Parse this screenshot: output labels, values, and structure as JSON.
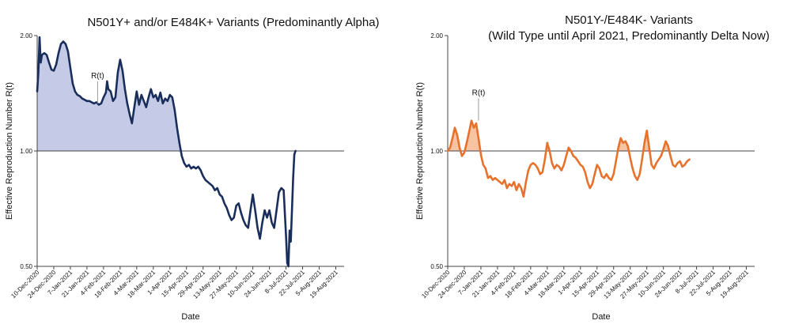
{
  "chart_data": [
    {
      "type": "area",
      "title": "N501Y+ and/or E484K+ Variants (Predominantly Alpha)",
      "subtitle": "",
      "xlabel": "Date",
      "ylabel": "Effective Reproduction Number R(t)",
      "y_scale": "log",
      "ylim": [
        0.5,
        2.0
      ],
      "y_ticks": [
        "0.50",
        "1.00",
        "2.00"
      ],
      "x_tick_labels": [
        "10-Dec-2020",
        "24-Dec-2020",
        "7-Jan-2021",
        "21-Jan-2021",
        "4-Feb-2021",
        "18-Feb-2021",
        "4-Mar-2021",
        "18-Mar-2021",
        "1-Apr-2021",
        "15-Apr-2021",
        "29-Apr-2021",
        "13-May-2021",
        "27-May-2021",
        "10-Jun-2021",
        "24-Jun-2021",
        "8-Jul-2021",
        "22-Jul-2021",
        "5-Aug-2021",
        "19-Aug-2021"
      ],
      "x_start": "2020-12-10",
      "x_end": "2021-08-26",
      "reference_line": 1.0,
      "annotation": {
        "text": "R(t)",
        "date": "2021-01-30",
        "value": 1.33
      },
      "line_color": "#1a2e5c",
      "fill_color": "#c5cbe6",
      "series": [
        {
          "name": "R(t)",
          "points": [
            [
              "2020-12-10",
              1.43
            ],
            [
              "2020-12-11",
              1.6
            ],
            [
              "2020-12-12",
              1.98
            ],
            [
              "2020-12-13",
              1.7
            ],
            [
              "2020-12-14",
              1.78
            ],
            [
              "2020-12-16",
              1.8
            ],
            [
              "2020-12-18",
              1.78
            ],
            [
              "2020-12-20",
              1.7
            ],
            [
              "2020-12-22",
              1.63
            ],
            [
              "2020-12-24",
              1.62
            ],
            [
              "2020-12-26",
              1.68
            ],
            [
              "2020-12-28",
              1.8
            ],
            [
              "2020-12-30",
              1.9
            ],
            [
              "2021-01-01",
              1.93
            ],
            [
              "2021-01-03",
              1.9
            ],
            [
              "2021-01-05",
              1.82
            ],
            [
              "2021-01-07",
              1.65
            ],
            [
              "2021-01-09",
              1.5
            ],
            [
              "2021-01-11",
              1.43
            ],
            [
              "2021-01-13",
              1.4
            ],
            [
              "2021-01-15",
              1.39
            ],
            [
              "2021-01-17",
              1.37
            ],
            [
              "2021-01-19",
              1.36
            ],
            [
              "2021-01-21",
              1.35
            ],
            [
              "2021-01-23",
              1.35
            ],
            [
              "2021-01-25",
              1.34
            ],
            [
              "2021-01-27",
              1.33
            ],
            [
              "2021-01-29",
              1.34
            ],
            [
              "2021-01-31",
              1.32
            ],
            [
              "2021-02-02",
              1.33
            ],
            [
              "2021-02-04",
              1.38
            ],
            [
              "2021-02-06",
              1.42
            ],
            [
              "2021-02-07",
              1.52
            ],
            [
              "2021-02-08",
              1.45
            ],
            [
              "2021-02-10",
              1.43
            ],
            [
              "2021-02-12",
              1.35
            ],
            [
              "2021-02-14",
              1.38
            ],
            [
              "2021-02-16",
              1.6
            ],
            [
              "2021-02-18",
              1.73
            ],
            [
              "2021-02-20",
              1.62
            ],
            [
              "2021-02-22",
              1.45
            ],
            [
              "2021-02-24",
              1.33
            ],
            [
              "2021-02-26",
              1.25
            ],
            [
              "2021-02-28",
              1.18
            ],
            [
              "2021-03-02",
              1.3
            ],
            [
              "2021-03-04",
              1.43
            ],
            [
              "2021-03-06",
              1.32
            ],
            [
              "2021-03-08",
              1.4
            ],
            [
              "2021-03-10",
              1.35
            ],
            [
              "2021-03-12",
              1.3
            ],
            [
              "2021-03-14",
              1.38
            ],
            [
              "2021-03-16",
              1.45
            ],
            [
              "2021-03-18",
              1.38
            ],
            [
              "2021-03-20",
              1.4
            ],
            [
              "2021-03-22",
              1.35
            ],
            [
              "2021-03-24",
              1.42
            ],
            [
              "2021-03-26",
              1.33
            ],
            [
              "2021-03-28",
              1.37
            ],
            [
              "2021-03-30",
              1.35
            ],
            [
              "2021-04-01",
              1.4
            ],
            [
              "2021-04-03",
              1.38
            ],
            [
              "2021-04-05",
              1.28
            ],
            [
              "2021-04-07",
              1.15
            ],
            [
              "2021-04-09",
              1.05
            ],
            [
              "2021-04-11",
              0.97
            ],
            [
              "2021-04-13",
              0.93
            ],
            [
              "2021-04-15",
              0.91
            ],
            [
              "2021-04-17",
              0.92
            ],
            [
              "2021-04-19",
              0.9
            ],
            [
              "2021-04-21",
              0.91
            ],
            [
              "2021-04-23",
              0.9
            ],
            [
              "2021-04-25",
              0.91
            ],
            [
              "2021-04-27",
              0.89
            ],
            [
              "2021-04-29",
              0.86
            ],
            [
              "2021-05-01",
              0.84
            ],
            [
              "2021-05-03",
              0.83
            ],
            [
              "2021-05-05",
              0.82
            ],
            [
              "2021-05-07",
              0.81
            ],
            [
              "2021-05-09",
              0.79
            ],
            [
              "2021-05-11",
              0.8
            ],
            [
              "2021-05-13",
              0.77
            ],
            [
              "2021-05-15",
              0.76
            ],
            [
              "2021-05-17",
              0.73
            ],
            [
              "2021-05-19",
              0.71
            ],
            [
              "2021-05-21",
              0.68
            ],
            [
              "2021-05-23",
              0.66
            ],
            [
              "2021-05-25",
              0.67
            ],
            [
              "2021-05-27",
              0.72
            ],
            [
              "2021-05-29",
              0.73
            ],
            [
              "2021-05-31",
              0.69
            ],
            [
              "2021-06-02",
              0.66
            ],
            [
              "2021-06-04",
              0.64
            ],
            [
              "2021-06-06",
              0.63
            ],
            [
              "2021-06-08",
              0.7
            ],
            [
              "2021-06-10",
              0.77
            ],
            [
              "2021-06-12",
              0.7
            ],
            [
              "2021-06-14",
              0.63
            ],
            [
              "2021-06-16",
              0.59
            ],
            [
              "2021-06-18",
              0.65
            ],
            [
              "2021-06-20",
              0.7
            ],
            [
              "2021-06-22",
              0.67
            ],
            [
              "2021-06-24",
              0.7
            ],
            [
              "2021-06-26",
              0.65
            ],
            [
              "2021-06-28",
              0.63
            ],
            [
              "2021-06-30",
              0.7
            ],
            [
              "2021-07-02",
              0.78
            ],
            [
              "2021-07-04",
              0.8
            ],
            [
              "2021-07-06",
              0.79
            ],
            [
              "2021-07-08",
              0.6
            ],
            [
              "2021-07-09",
              0.51
            ],
            [
              "2021-07-10",
              0.5
            ],
            [
              "2021-07-11",
              0.62
            ],
            [
              "2021-07-12",
              0.58
            ],
            [
              "2021-07-13",
              0.7
            ],
            [
              "2021-07-14",
              0.85
            ],
            [
              "2021-07-15",
              0.98
            ],
            [
              "2021-07-16",
              1.0
            ]
          ]
        }
      ]
    },
    {
      "type": "area",
      "title": "N501Y-/E484K- Variants",
      "subtitle": "(Wild Type until April 2021, Predominantly Delta Now)",
      "xlabel": "Date",
      "ylabel": "Effective Reproduction Number R(t)",
      "y_scale": "log",
      "ylim": [
        0.5,
        2.0
      ],
      "y_ticks": [
        "0.50",
        "1.00",
        "2.00"
      ],
      "x_tick_labels": [
        "10-Dec-2020",
        "24-Dec-2020",
        "7-Jan-2021",
        "21-Jan-2021",
        "4-Feb-2021",
        "18-Feb-2021",
        "4-Mar-2021",
        "18-Mar-2021",
        "1-Apr-2021",
        "15-Apr-2021",
        "29-Apr-2021",
        "13-May-2021",
        "27-May-2021",
        "10-Jun-2021",
        "24-Jun-2021",
        "8-Jul-2021",
        "22-Jul-2021",
        "5-Aug-2021",
        "19-Aug-2021"
      ],
      "x_start": "2020-12-10",
      "x_end": "2021-08-26",
      "reference_line": 1.0,
      "annotation": {
        "text": "R(t)",
        "date": "2021-01-05",
        "value": 1.2
      },
      "line_color": "#e8722c",
      "fill_color": "#f6c3a3",
      "series": [
        {
          "name": "R(t)",
          "points": [
            [
              "2020-12-10",
              1.0
            ],
            [
              "2020-12-12",
              1.02
            ],
            [
              "2020-12-14",
              1.08
            ],
            [
              "2020-12-16",
              1.15
            ],
            [
              "2020-12-18",
              1.1
            ],
            [
              "2020-12-20",
              1.02
            ],
            [
              "2020-12-22",
              0.97
            ],
            [
              "2020-12-24",
              0.99
            ],
            [
              "2020-12-26",
              1.05
            ],
            [
              "2020-12-28",
              1.12
            ],
            [
              "2020-12-30",
              1.2
            ],
            [
              "2021-01-01",
              1.15
            ],
            [
              "2021-01-03",
              1.18
            ],
            [
              "2021-01-05",
              1.08
            ],
            [
              "2021-01-07",
              0.98
            ],
            [
              "2021-01-09",
              0.92
            ],
            [
              "2021-01-11",
              0.9
            ],
            [
              "2021-01-13",
              0.85
            ],
            [
              "2021-01-15",
              0.86
            ],
            [
              "2021-01-17",
              0.84
            ],
            [
              "2021-01-19",
              0.85
            ],
            [
              "2021-01-21",
              0.84
            ],
            [
              "2021-01-23",
              0.83
            ],
            [
              "2021-01-25",
              0.82
            ],
            [
              "2021-01-27",
              0.84
            ],
            [
              "2021-01-29",
              0.8
            ],
            [
              "2021-01-31",
              0.82
            ],
            [
              "2021-02-02",
              0.81
            ],
            [
              "2021-02-04",
              0.83
            ],
            [
              "2021-02-06",
              0.79
            ],
            [
              "2021-02-08",
              0.82
            ],
            [
              "2021-02-10",
              0.8
            ],
            [
              "2021-02-12",
              0.76
            ],
            [
              "2021-02-14",
              0.83
            ],
            [
              "2021-02-16",
              0.89
            ],
            [
              "2021-02-18",
              0.92
            ],
            [
              "2021-02-20",
              0.93
            ],
            [
              "2021-02-22",
              0.92
            ],
            [
              "2021-02-24",
              0.9
            ],
            [
              "2021-02-26",
              0.87
            ],
            [
              "2021-02-28",
              0.88
            ],
            [
              "2021-03-02",
              0.95
            ],
            [
              "2021-03-04",
              1.05
            ],
            [
              "2021-03-06",
              1.0
            ],
            [
              "2021-03-08",
              0.93
            ],
            [
              "2021-03-10",
              0.9
            ],
            [
              "2021-03-12",
              0.92
            ],
            [
              "2021-03-14",
              0.91
            ],
            [
              "2021-03-16",
              0.89
            ],
            [
              "2021-03-18",
              0.92
            ],
            [
              "2021-03-20",
              0.97
            ],
            [
              "2021-03-22",
              1.02
            ],
            [
              "2021-03-24",
              1.0
            ],
            [
              "2021-03-26",
              0.97
            ],
            [
              "2021-03-28",
              0.96
            ],
            [
              "2021-03-30",
              0.94
            ],
            [
              "2021-04-01",
              0.92
            ],
            [
              "2021-04-03",
              0.91
            ],
            [
              "2021-04-05",
              0.88
            ],
            [
              "2021-04-07",
              0.83
            ],
            [
              "2021-04-09",
              0.8
            ],
            [
              "2021-04-11",
              0.82
            ],
            [
              "2021-04-13",
              0.87
            ],
            [
              "2021-04-15",
              0.92
            ],
            [
              "2021-04-17",
              0.9
            ],
            [
              "2021-04-19",
              0.86
            ],
            [
              "2021-04-21",
              0.85
            ],
            [
              "2021-04-23",
              0.87
            ],
            [
              "2021-04-25",
              0.85
            ],
            [
              "2021-04-27",
              0.84
            ],
            [
              "2021-04-29",
              0.87
            ],
            [
              "2021-05-01",
              0.94
            ],
            [
              "2021-05-03",
              1.02
            ],
            [
              "2021-05-05",
              1.08
            ],
            [
              "2021-05-07",
              1.05
            ],
            [
              "2021-05-09",
              1.06
            ],
            [
              "2021-05-11",
              1.03
            ],
            [
              "2021-05-13",
              0.96
            ],
            [
              "2021-05-15",
              0.9
            ],
            [
              "2021-05-17",
              0.86
            ],
            [
              "2021-05-19",
              0.84
            ],
            [
              "2021-05-21",
              0.87
            ],
            [
              "2021-05-23",
              0.95
            ],
            [
              "2021-05-25",
              1.05
            ],
            [
              "2021-05-27",
              1.13
            ],
            [
              "2021-05-29",
              1.02
            ],
            [
              "2021-05-31",
              0.92
            ],
            [
              "2021-06-02",
              0.9
            ],
            [
              "2021-06-04",
              0.93
            ],
            [
              "2021-06-06",
              0.95
            ],
            [
              "2021-06-08",
              0.97
            ],
            [
              "2021-06-10",
              1.01
            ],
            [
              "2021-06-12",
              1.06
            ],
            [
              "2021-06-14",
              1.03
            ],
            [
              "2021-06-16",
              0.97
            ],
            [
              "2021-06-18",
              0.92
            ],
            [
              "2021-06-20",
              0.91
            ],
            [
              "2021-06-22",
              0.93
            ],
            [
              "2021-06-24",
              0.94
            ],
            [
              "2021-06-26",
              0.91
            ],
            [
              "2021-06-28",
              0.92
            ],
            [
              "2021-06-30",
              0.94
            ],
            [
              "2021-07-02",
              0.95
            ]
          ]
        }
      ]
    }
  ]
}
